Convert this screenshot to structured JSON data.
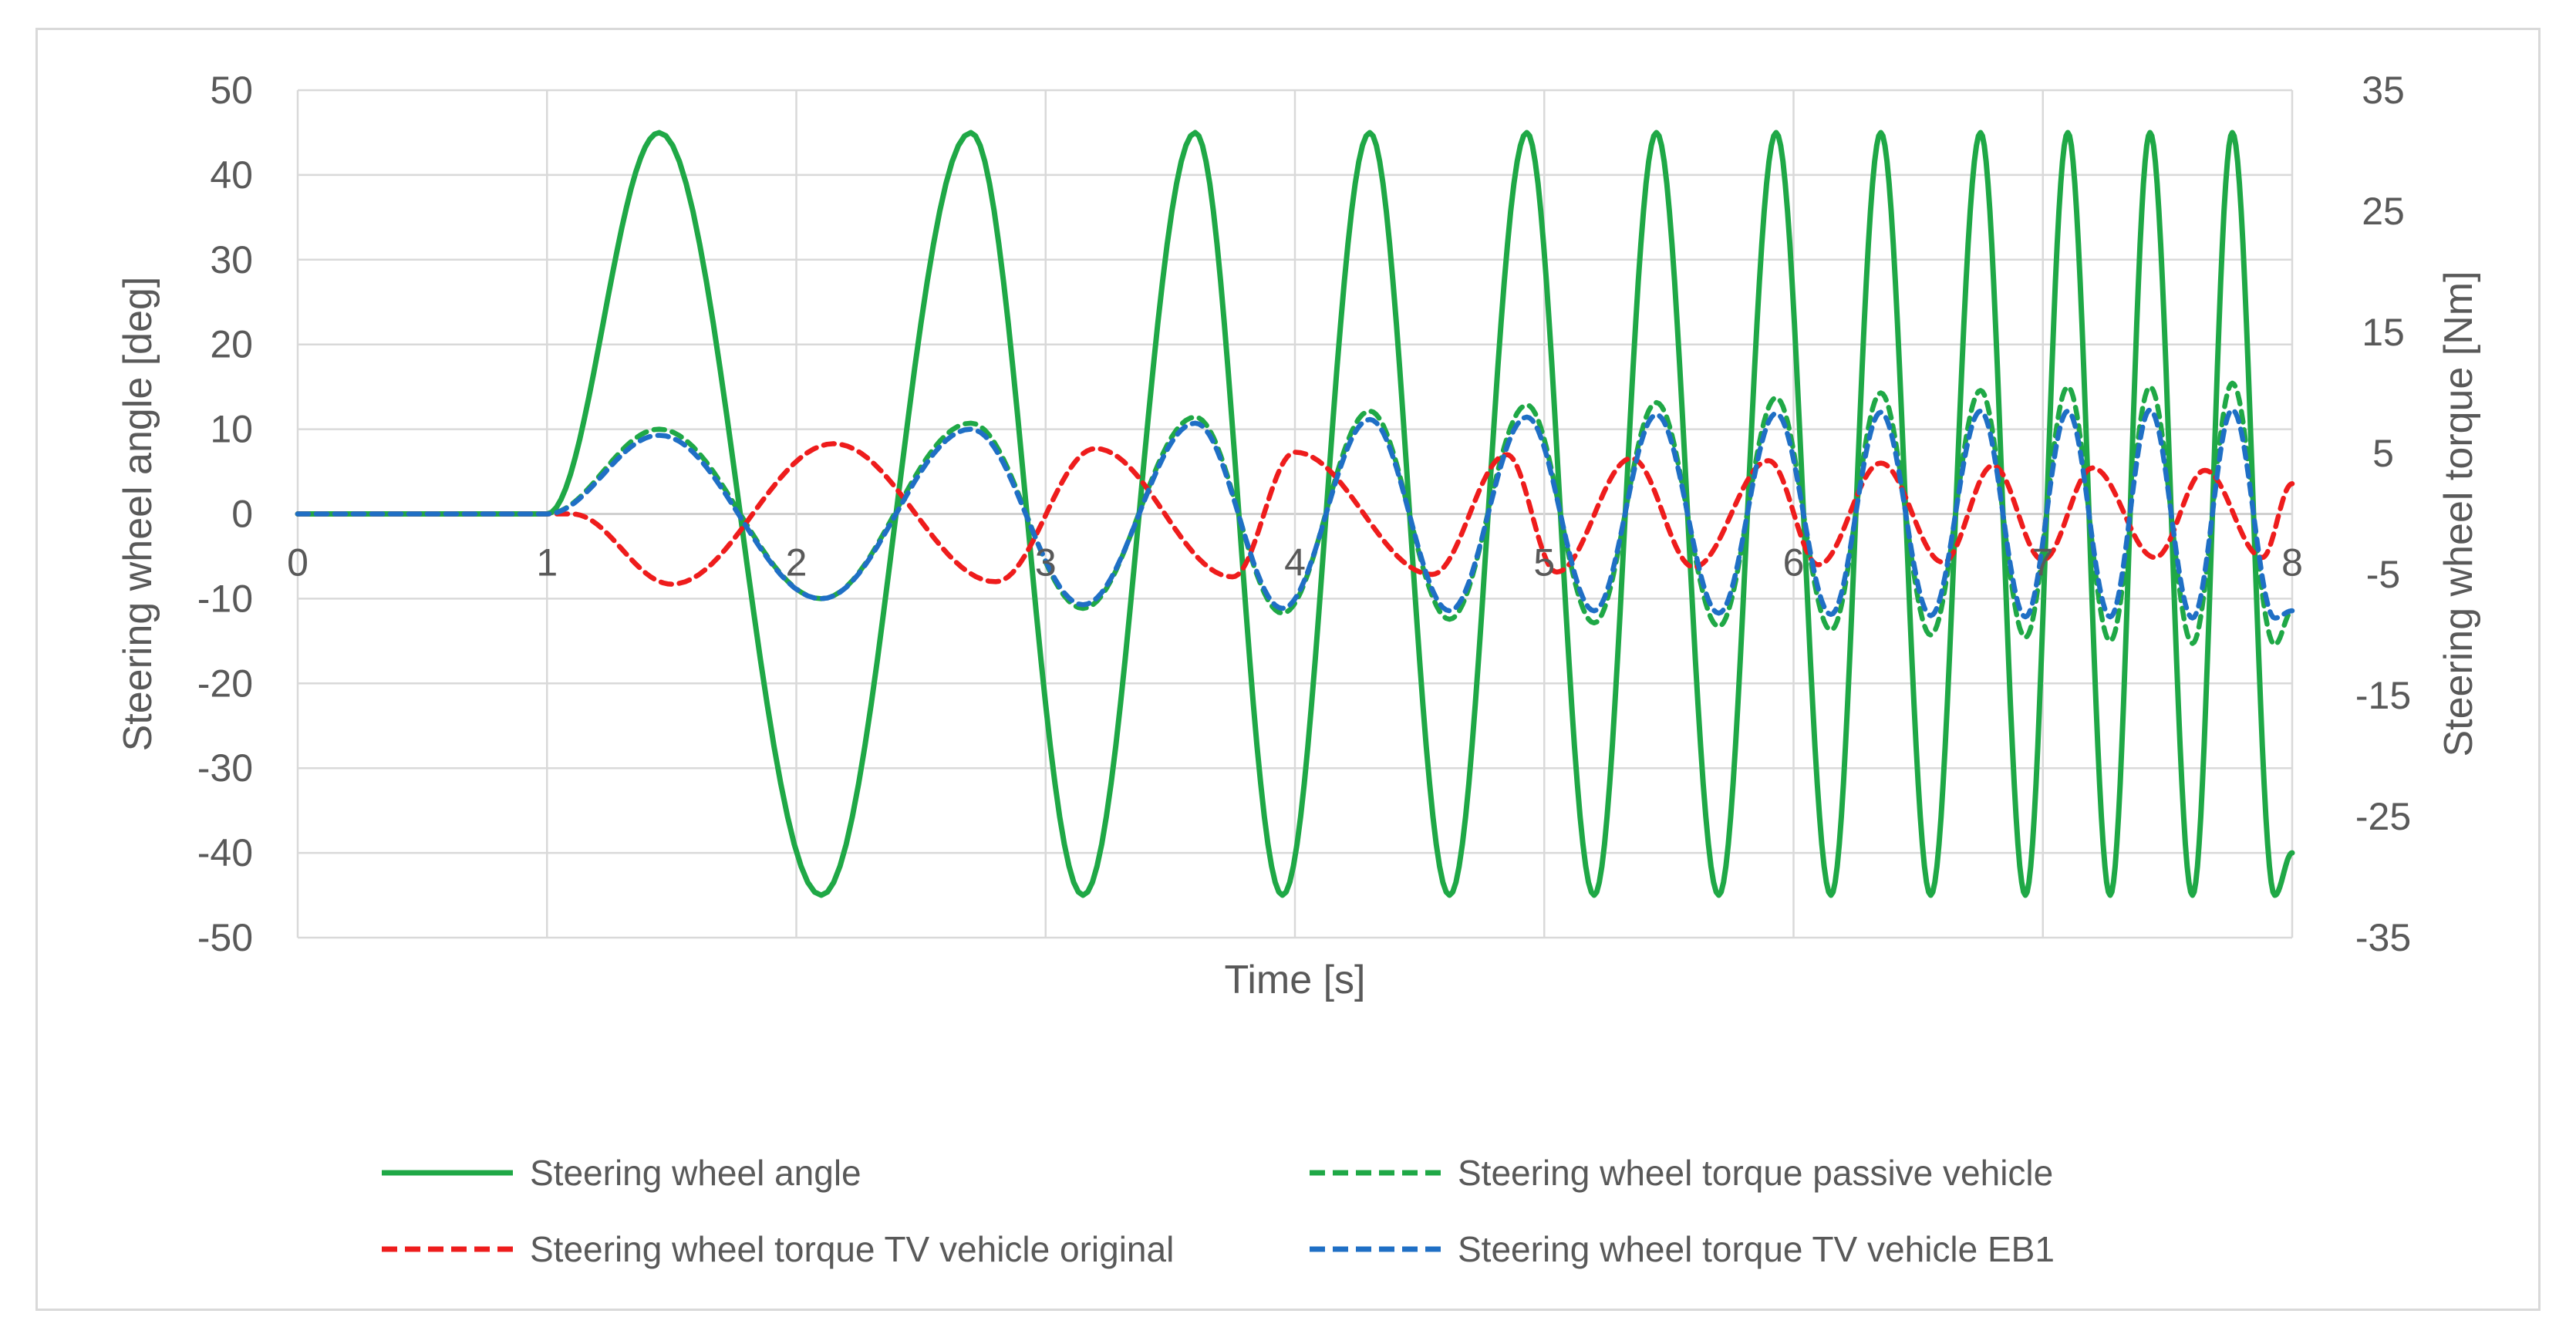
{
  "chart_data": {
    "type": "line",
    "xlabel": "Time [s]",
    "ylabel": "Steering wheel angle [deg]",
    "y2label": "Steering wheel torque [Nm]",
    "xlim": [
      0,
      8
    ],
    "ylim": [
      -50,
      50
    ],
    "y2lim": [
      -35,
      35
    ],
    "x_ticks": [
      "0",
      "1",
      "2",
      "3",
      "4",
      "5",
      "6",
      "7",
      "8"
    ],
    "y_ticks": [
      "50",
      "40",
      "30",
      "20",
      "10",
      "0",
      "-10",
      "-20",
      "-30",
      "-40",
      "-50"
    ],
    "y2_ticks": [
      "35",
      "25",
      "15",
      "5",
      "-5",
      "-15",
      "-25",
      "-35"
    ],
    "grid": true,
    "legend_position": "bottom",
    "series": [
      {
        "name": "Steering wheel angle",
        "axis": "left",
        "color": "#1fa846",
        "dash": "solid",
        "input_start": 1.0,
        "amplitude": 45,
        "peaks": [
          [
            1.45,
            45
          ],
          [
            2.1,
            -45
          ],
          [
            2.7,
            45
          ],
          [
            3.15,
            -45
          ],
          [
            3.6,
            45
          ],
          [
            3.95,
            -45
          ],
          [
            4.3,
            45
          ],
          [
            4.62,
            -45
          ],
          [
            4.93,
            45
          ],
          [
            5.2,
            -45
          ],
          [
            5.45,
            45
          ],
          [
            5.7,
            -45
          ],
          [
            5.93,
            45
          ],
          [
            6.15,
            -45
          ],
          [
            6.35,
            45
          ],
          [
            6.55,
            -45
          ],
          [
            6.75,
            45
          ],
          [
            6.93,
            -45
          ],
          [
            7.1,
            45
          ],
          [
            7.27,
            -45
          ],
          [
            7.43,
            45
          ],
          [
            7.6,
            -45
          ],
          [
            7.76,
            45
          ],
          [
            7.93,
            -45
          ],
          [
            8.0,
            -40
          ]
        ]
      },
      {
        "name": "Steering wheel torque passive vehicle",
        "axis": "right",
        "color": "#1fa846",
        "dash": "dashed",
        "peaks": [
          [
            1.0,
            0
          ],
          [
            1.45,
            7
          ],
          [
            2.1,
            -7
          ],
          [
            2.7,
            7.5
          ],
          [
            3.15,
            -7.8
          ],
          [
            3.6,
            8
          ],
          [
            3.95,
            -8.2
          ],
          [
            4.3,
            8.5
          ],
          [
            4.62,
            -8.7
          ],
          [
            4.93,
            9
          ],
          [
            5.2,
            -9
          ],
          [
            5.45,
            9.2
          ],
          [
            5.7,
            -9.3
          ],
          [
            5.93,
            9.6
          ],
          [
            6.15,
            -9.6
          ],
          [
            6.35,
            10
          ],
          [
            6.55,
            -10
          ],
          [
            6.75,
            10.2
          ],
          [
            6.93,
            -10.2
          ],
          [
            7.1,
            10.5
          ],
          [
            7.27,
            -10.5
          ],
          [
            7.43,
            10.5
          ],
          [
            7.6,
            -10.7
          ],
          [
            7.76,
            10.8
          ],
          [
            7.93,
            -10.8
          ],
          [
            8.0,
            -8
          ]
        ]
      },
      {
        "name": "Steering wheel torque TV vehicle original",
        "axis": "right",
        "color": "#ee1c1c",
        "dash": "dashed",
        "peaks": [
          [
            1.0,
            0
          ],
          [
            1.1,
            0
          ],
          [
            1.5,
            -5.8
          ],
          [
            2.15,
            5.8
          ],
          [
            2.8,
            -5.6
          ],
          [
            3.2,
            5.4
          ],
          [
            3.75,
            -5.2
          ],
          [
            4.0,
            5.1
          ],
          [
            4.55,
            -5
          ],
          [
            4.85,
            4.9
          ],
          [
            5.05,
            -4.8
          ],
          [
            5.35,
            4.6
          ],
          [
            5.6,
            -4.4
          ],
          [
            5.9,
            4.4
          ],
          [
            6.1,
            -4.2
          ],
          [
            6.35,
            4.2
          ],
          [
            6.6,
            -4.0
          ],
          [
            6.8,
            4.0
          ],
          [
            7.0,
            -3.8
          ],
          [
            7.2,
            3.8
          ],
          [
            7.45,
            -3.6
          ],
          [
            7.65,
            3.6
          ],
          [
            7.88,
            -3.6
          ],
          [
            8.0,
            2.5
          ]
        ]
      },
      {
        "name": "Steering wheel torque TV vehicle EB1",
        "axis": "right",
        "color": "#1f6fc5",
        "dash": "dashed",
        "peaks": [
          [
            1.0,
            0
          ],
          [
            1.45,
            6.5
          ],
          [
            2.1,
            -7
          ],
          [
            2.7,
            7
          ],
          [
            3.15,
            -7.5
          ],
          [
            3.6,
            7.5
          ],
          [
            3.95,
            -7.8
          ],
          [
            4.3,
            7.8
          ],
          [
            4.62,
            -8
          ],
          [
            4.93,
            8
          ],
          [
            5.2,
            -8
          ],
          [
            5.45,
            8.2
          ],
          [
            5.7,
            -8.2
          ],
          [
            5.93,
            8.3
          ],
          [
            6.15,
            -8.3
          ],
          [
            6.35,
            8.4
          ],
          [
            6.55,
            -8.4
          ],
          [
            6.75,
            8.5
          ],
          [
            6.93,
            -8.5
          ],
          [
            7.1,
            8.5
          ],
          [
            7.27,
            -8.5
          ],
          [
            7.43,
            8.6
          ],
          [
            7.6,
            -8.6
          ],
          [
            7.76,
            8.6
          ],
          [
            7.93,
            -8.6
          ],
          [
            8.0,
            -8
          ]
        ]
      }
    ]
  }
}
